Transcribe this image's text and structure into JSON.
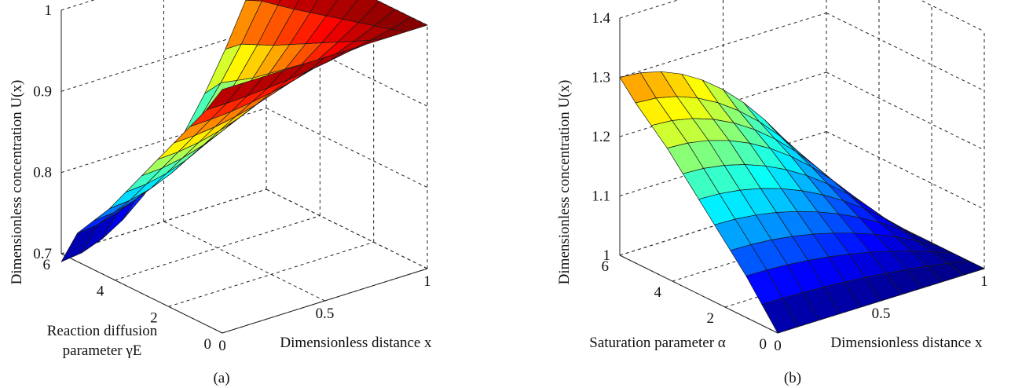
{
  "figure": {
    "panels": [
      {
        "caption": "(a)",
        "zlabel": "Dimensionless concentration U(x)",
        "xlabel": "Dimensionless distance x",
        "ylabel_line1": "Reaction diffusion",
        "ylabel_line2": "parameter γE"
      },
      {
        "caption": "(b)",
        "zlabel": "Dimensionless concentration U(x)",
        "xlabel": "Dimensionless distance x",
        "ylabel_line1": "Saturation parameter α",
        "ylabel_line2": ""
      }
    ]
  },
  "chart_data": [
    {
      "type": "surface",
      "xlabel": "Dimensionless distance x",
      "ylabel": "Reaction diffusion parameter γE",
      "zlabel": "Dimensionless concentration U(x)",
      "xlim": [
        0,
        1
      ],
      "ylim": [
        0,
        6
      ],
      "zlim": [
        0.7,
        1
      ],
      "x_ticks": [
        "0",
        "0.5",
        "1"
      ],
      "y_ticks": [
        "0",
        "2",
        "4",
        "6"
      ],
      "z_ticks": [
        "0.7",
        "0.8",
        "0.9",
        "1"
      ],
      "x_grid": [
        0,
        0.1,
        0.2,
        0.3,
        0.4,
        0.5,
        0.6,
        0.7,
        0.8,
        0.9,
        1.0
      ],
      "y_grid": [
        0,
        0.6,
        1.2,
        1.8,
        2.4,
        3.0,
        3.6,
        4.2,
        4.8,
        5.4,
        6.0
      ],
      "surface_model": "U(x) ≈ 1 − (1 − U0(γE))·(1 − x²), U0 from 1 (γE=0) to 0.69 (γE=6)",
      "u_at_x0": [
        1.0,
        0.965,
        0.935,
        0.905,
        0.875,
        0.845,
        0.815,
        0.785,
        0.76,
        0.735,
        0.69
      ],
      "u_at_x1": [
        1.0,
        1.0,
        1.0,
        1.0,
        1.0,
        1.0,
        1.0,
        1.0,
        1.0,
        1.0,
        1.0
      ],
      "colormap": "jet"
    },
    {
      "type": "surface",
      "xlabel": "Dimensionless distance x",
      "ylabel": "Saturation parameter α",
      "zlabel": "Dimensionless concentration U(x)",
      "xlim": [
        0,
        1
      ],
      "ylim": [
        0,
        6
      ],
      "zlim": [
        1,
        1.4
      ],
      "x_ticks": [
        "0",
        "0.5",
        "1"
      ],
      "y_ticks": [
        "0",
        "2",
        "4",
        "6"
      ],
      "z_ticks": [
        "1",
        "1.1",
        "1.2",
        "1.3",
        "1.4"
      ],
      "x_grid": [
        0,
        0.1,
        0.2,
        0.3,
        0.4,
        0.5,
        0.6,
        0.7,
        0.8,
        0.9,
        1.0
      ],
      "y_grid": [
        0,
        0.6,
        1.2,
        1.8,
        2.4,
        3.0,
        3.6,
        4.2,
        4.8,
        5.4,
        6.0
      ],
      "surface_model": "U(x) ≈ 1 + (U0(α) − 1)·(1 − x²), U0 from 1 (α=0) to 1.3 (α=6)",
      "u_at_x0": [
        1.0,
        1.035,
        1.07,
        1.1,
        1.13,
        1.16,
        1.19,
        1.22,
        1.245,
        1.27,
        1.3
      ],
      "u_at_x1": [
        1.0,
        1.0,
        1.0,
        1.0,
        1.0,
        1.0,
        1.0,
        1.0,
        1.0,
        1.0,
        1.0
      ],
      "colormap": "jet"
    }
  ]
}
